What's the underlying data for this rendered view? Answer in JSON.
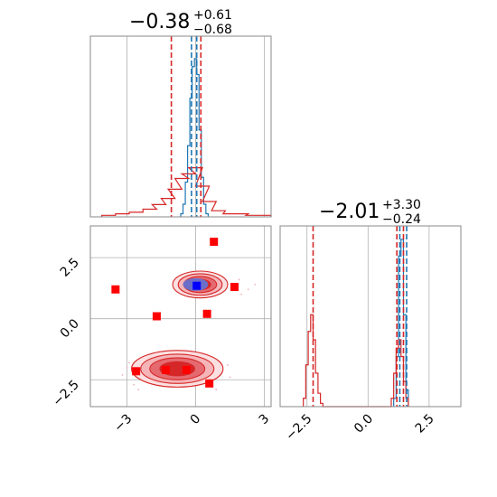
{
  "chart_data": [
    {
      "type": "histogram",
      "panel": "marginal-x",
      "title": {
        "value": "−0.38",
        "upper": "+0.61",
        "lower": "−0.68"
      },
      "xlim": [
        -4.6,
        3.3
      ],
      "series": [
        {
          "name": "",
          "color": "#1f77b4",
          "x": [
            -0.6,
            -0.5,
            -0.4,
            -0.3,
            -0.2,
            -0.1,
            0.0,
            0.1,
            0.2,
            0.3,
            0.4,
            0.5
          ],
          "y": [
            0.02,
            0.08,
            0.22,
            0.45,
            0.75,
            0.95,
            1.0,
            0.9,
            0.55,
            0.25,
            0.08,
            0.02
          ]
        },
        {
          "name": "",
          "color": "#d62728",
          "x": [
            -3.8,
            -3.2,
            -2.6,
            -2.0,
            -1.6,
            -1.2,
            -0.9,
            -0.6,
            -0.3,
            0.0,
            0.3,
            0.6,
            1.0,
            1.5,
            2.0,
            2.5,
            3.0
          ],
          "y": [
            0.01,
            0.02,
            0.03,
            0.05,
            0.08,
            0.12,
            0.18,
            0.25,
            0.28,
            0.32,
            0.2,
            0.1,
            0.04,
            0.02,
            0.02,
            0.01,
            0.01
          ]
        }
      ],
      "vlines": [
        {
          "x": -1.06,
          "color": "#d62728"
        },
        {
          "x": -0.18,
          "color": "#1f77b4"
        },
        {
          "x": 0.05,
          "color": "#1f77b4"
        },
        {
          "x": 0.23,
          "color": "#d62728"
        }
      ]
    },
    {
      "type": "contour",
      "panel": "joint",
      "xlim": [
        -4.6,
        3.3
      ],
      "ylim": [
        -3.6,
        3.8
      ],
      "yticks": [
        2.5,
        0.0,
        -2.5
      ],
      "xticks": [
        -3,
        0,
        3
      ],
      "blobs": [
        {
          "cx": 0.2,
          "cy": 1.4,
          "rx": 1.2,
          "ry": 0.55,
          "color": "#d62728"
        },
        {
          "cx": -0.8,
          "cy": -2.05,
          "rx": 2.0,
          "ry": 0.75,
          "color": "#d62728"
        }
      ],
      "truth_point": {
        "x": 0.05,
        "y": 1.35,
        "color": "#0000ff"
      },
      "points": [
        {
          "x": 0.8,
          "y": 3.15
        },
        {
          "x": -3.5,
          "y": 1.2
        },
        {
          "x": 1.7,
          "y": 1.3
        },
        {
          "x": -1.7,
          "y": 0.1
        },
        {
          "x": 0.5,
          "y": 0.2
        },
        {
          "x": -2.6,
          "y": -2.15
        },
        {
          "x": -1.3,
          "y": -2.1
        },
        {
          "x": -0.4,
          "y": -2.1
        },
        {
          "x": 0.6,
          "y": -2.65
        }
      ],
      "point_color": "#ff0000"
    },
    {
      "type": "histogram",
      "panel": "marginal-y",
      "title": {
        "value": "−2.01",
        "upper": "+3.30",
        "lower": "−0.24"
      },
      "xlim": [
        -3.6,
        3.8
      ],
      "xticks": [
        -2.5,
        0.0,
        2.5
      ],
      "series": [
        {
          "name": "",
          "color": "#1f77b4",
          "x": [
            1.1,
            1.2,
            1.3,
            1.4,
            1.5,
            1.6
          ],
          "y": [
            0.05,
            0.3,
            0.9,
            1.0,
            0.55,
            0.1
          ]
        },
        {
          "name": "",
          "color": "#d62728",
          "x": [
            -2.6,
            -2.5,
            -2.4,
            -2.3,
            -2.2,
            -2.1,
            -2.0,
            -1.9,
            1.0,
            1.1,
            1.2,
            1.3,
            1.4,
            1.5,
            1.6
          ],
          "y": [
            0.05,
            0.25,
            0.45,
            0.55,
            0.4,
            0.2,
            0.08,
            0.02,
            0.05,
            0.2,
            0.35,
            0.4,
            0.3,
            0.15,
            0.05
          ]
        }
      ],
      "vlines": [
        {
          "x": -2.25,
          "color": "#d62728"
        },
        {
          "x": 1.18,
          "color": "#d62728"
        },
        {
          "x": 1.3,
          "color": "#1f77b4"
        },
        {
          "x": 1.45,
          "color": "#d62728"
        },
        {
          "x": 1.58,
          "color": "#1f77b4"
        }
      ]
    }
  ]
}
